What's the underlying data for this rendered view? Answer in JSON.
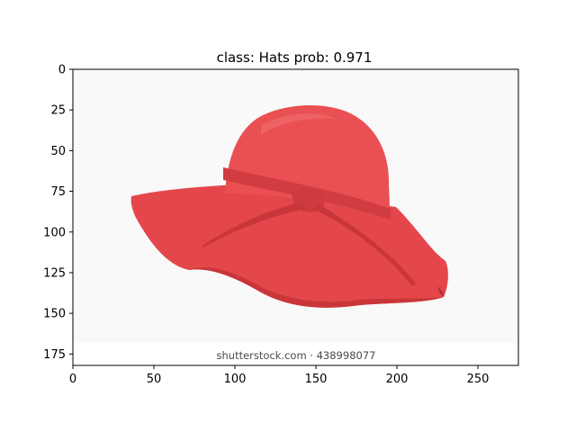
{
  "title": "class: Hats   prob: 0.971",
  "watermark": "shutterstock.com · 438998077",
  "axes": {
    "x_ticks": [
      0,
      50,
      100,
      150,
      200,
      250
    ],
    "y_ticks": [
      0,
      25,
      50,
      75,
      100,
      125,
      150,
      175
    ],
    "x_range": [
      0,
      275
    ],
    "y_range": [
      182,
      0
    ]
  },
  "colors": {
    "hat": "#e4474b",
    "hat_dark": "#c93639",
    "background": "#f9f9f9"
  }
}
